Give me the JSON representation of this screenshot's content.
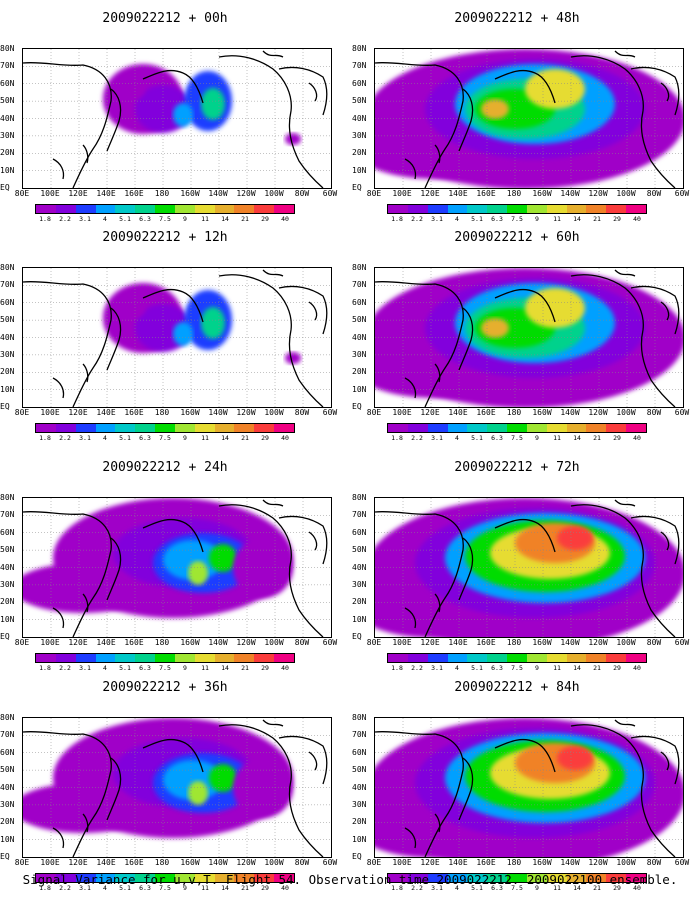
{
  "panels": [
    {
      "title": "2009022212 + 00h",
      "blobs": "small"
    },
    {
      "title": "2009022212 + 12h",
      "blobs": "small"
    },
    {
      "title": "2009022212 + 24h",
      "blobs": "medium"
    },
    {
      "title": "2009022212 + 36h",
      "blobs": "medium"
    },
    {
      "title": "2009022212 + 48h",
      "blobs": "large"
    },
    {
      "title": "2009022212 + 60h",
      "blobs": "large"
    },
    {
      "title": "2009022212 + 72h",
      "blobs": "xlarge"
    },
    {
      "title": "2009022212 + 84h",
      "blobs": "xlarge"
    }
  ],
  "lat_labels": [
    "80N",
    "70N",
    "60N",
    "50N",
    "40N",
    "30N",
    "20N",
    "10N",
    "EQ"
  ],
  "lon_labels": [
    "80E",
    "100E",
    "120E",
    "140E",
    "160E",
    "180",
    "160W",
    "140W",
    "120W",
    "100W",
    "80W",
    "60W"
  ],
  "legend": {
    "labels": [
      "1.8",
      "2.2",
      "3.1",
      "4",
      "5.1",
      "6.3",
      "7.5",
      "9",
      "11",
      "14",
      "21",
      "29",
      "40"
    ],
    "colors": [
      "#a000c8",
      "#8200dc",
      "#1e3cff",
      "#00a0ff",
      "#00c8c8",
      "#00d28c",
      "#00dc00",
      "#a0e632",
      "#e6dc32",
      "#e6af2d",
      "#f08228",
      "#fa3c3c",
      "#f00082"
    ]
  },
  "caption": "Signal Variance for u,v,T. Flight 54. Observation time 2009022212. 2009022100 ensemble."
}
